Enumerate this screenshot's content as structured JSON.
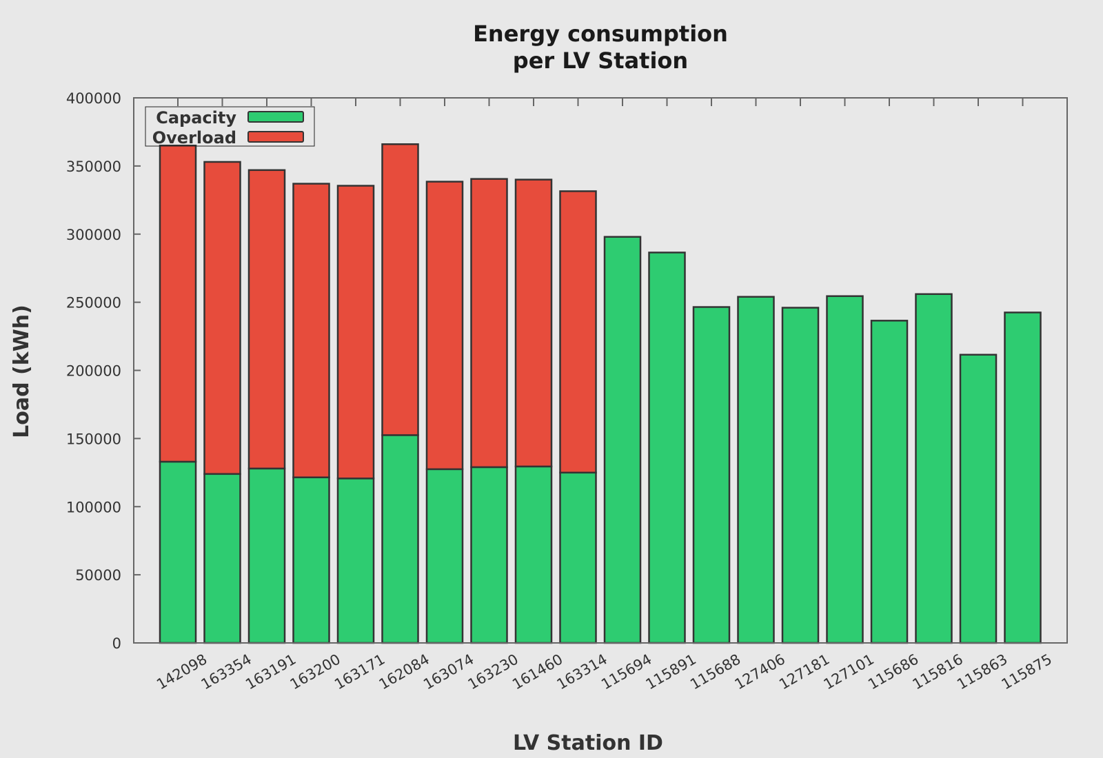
{
  "chart_data": {
    "type": "bar",
    "stacked": true,
    "title": [
      "Energy consumption",
      "per LV Station"
    ],
    "xlabel": "LV Station ID",
    "ylabel": "Load (kWh)",
    "ylim": [
      0,
      400000
    ],
    "yticks": [
      0,
      50000,
      100000,
      150000,
      200000,
      250000,
      300000,
      350000,
      400000
    ],
    "grid": false,
    "legend_position": "top-left",
    "categories": [
      "142098",
      "163354",
      "163191",
      "163200",
      "163171",
      "162084",
      "163074",
      "163230",
      "161460",
      "163314",
      "115694",
      "115891",
      "115688",
      "127406",
      "127181",
      "127101",
      "115686",
      "115816",
      "115863",
      "115875"
    ],
    "series": [
      {
        "name": "Capacity",
        "color": "#2ecc71",
        "values": [
          133000,
          124000,
          128000,
          121500,
          120700,
          152500,
          127500,
          129000,
          129500,
          125000,
          298000,
          286500,
          246500,
          254000,
          246000,
          254500,
          236500,
          256000,
          211500,
          242500
        ]
      },
      {
        "name": "Overload",
        "color": "#e74c3c",
        "values": [
          232000,
          229000,
          219000,
          215500,
          214800,
          213500,
          211000,
          211500,
          210500,
          206500,
          0,
          0,
          0,
          0,
          0,
          0,
          0,
          0,
          0,
          0
        ]
      }
    ]
  }
}
